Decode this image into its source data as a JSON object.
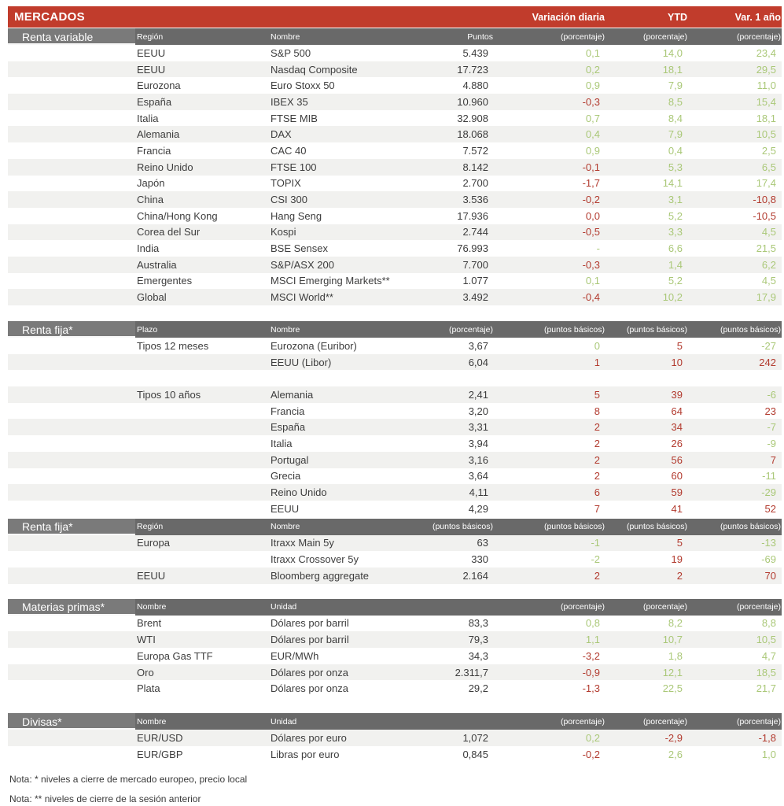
{
  "title_bar": {
    "title": "MERCADOS",
    "columns": [
      "Variación diaria",
      "YTD",
      "Var. 1 año"
    ]
  },
  "palette": {
    "bar_red": "#c13c2c",
    "negative": "#b23a2e",
    "positive": "#aac878",
    "header_gray": "#696969",
    "label_gray": "#7a7a7a",
    "row_alt": "#f1f1ef",
    "text": "#3d3d3d"
  },
  "sections": [
    {
      "id": "renta-variable",
      "label": "Renta variable",
      "col_ids": [
        "region",
        "nombre"
      ],
      "headers": [
        "Región",
        "Nombre",
        "Puntos",
        "(porcentaje)",
        "(porcentaje)",
        "(porcentaje)"
      ],
      "rows": [
        {
          "c1": "EEUU",
          "c2": "S&P 500",
          "val": "5.439",
          "v": [
            [
              "0,1",
              "g"
            ],
            [
              "14,0",
              "g"
            ],
            [
              "23,4",
              "g"
            ]
          ],
          "sh": 0
        },
        {
          "c1": "EEUU",
          "c2": "Nasdaq Composite",
          "val": "17.723",
          "v": [
            [
              "0,2",
              "g"
            ],
            [
              "18,1",
              "g"
            ],
            [
              "29,5",
              "g"
            ]
          ],
          "sh": 1
        },
        {
          "c1": "Eurozona",
          "c2": "Euro Stoxx 50",
          "val": "4.880",
          "v": [
            [
              "0,9",
              "g"
            ],
            [
              "7,9",
              "g"
            ],
            [
              "11,0",
              "g"
            ]
          ],
          "sh": 0
        },
        {
          "c1": "España",
          "c2": "IBEX 35",
          "val": "10.960",
          "v": [
            [
              "-0,3",
              "n"
            ],
            [
              "8,5",
              "g"
            ],
            [
              "15,4",
              "g"
            ]
          ],
          "sh": 1
        },
        {
          "c1": "Italia",
          "c2": "FTSE MIB",
          "val": "32.908",
          "v": [
            [
              "0,7",
              "g"
            ],
            [
              "8,4",
              "g"
            ],
            [
              "18,1",
              "g"
            ]
          ],
          "sh": 0
        },
        {
          "c1": "Alemania",
          "c2": "DAX",
          "val": "18.068",
          "v": [
            [
              "0,4",
              "g"
            ],
            [
              "7,9",
              "g"
            ],
            [
              "10,5",
              "g"
            ]
          ],
          "sh": 1
        },
        {
          "c1": "Francia",
          "c2": "CAC 40",
          "val": "7.572",
          "v": [
            [
              "0,9",
              "g"
            ],
            [
              "0,4",
              "g"
            ],
            [
              "2,5",
              "g"
            ]
          ],
          "sh": 0
        },
        {
          "c1": "Reino Unido",
          "c2": "FTSE 100",
          "val": "8.142",
          "v": [
            [
              "-0,1",
              "n"
            ],
            [
              "5,3",
              "g"
            ],
            [
              "6,5",
              "g"
            ]
          ],
          "sh": 1
        },
        {
          "c1": "Japón",
          "c2": "TOPIX",
          "val": "2.700",
          "v": [
            [
              "-1,7",
              "n"
            ],
            [
              "14,1",
              "g"
            ],
            [
              "17,4",
              "g"
            ]
          ],
          "sh": 0
        },
        {
          "c1": "China",
          "c2": "CSI 300",
          "val": "3.536",
          "v": [
            [
              "-0,2",
              "n"
            ],
            [
              "3,1",
              "g"
            ],
            [
              "-10,8",
              "n"
            ]
          ],
          "sh": 1
        },
        {
          "c1": "China/Hong Kong",
          "c2": "Hang Seng",
          "val": "17.936",
          "v": [
            [
              "0,0",
              "n"
            ],
            [
              "5,2",
              "g"
            ],
            [
              "-10,5",
              "n"
            ]
          ],
          "sh": 0
        },
        {
          "c1": "Corea del Sur",
          "c2": "Kospi",
          "val": "2.744",
          "v": [
            [
              "-0,5",
              "n"
            ],
            [
              "3,3",
              "g"
            ],
            [
              "4,5",
              "g"
            ]
          ],
          "sh": 1
        },
        {
          "c1": "India",
          "c2": "BSE Sensex",
          "val": "76.993",
          "v": [
            [
              "-",
              "g"
            ],
            [
              "6,6",
              "g"
            ],
            [
              "21,5",
              "g"
            ]
          ],
          "sh": 0
        },
        {
          "c1": "Australia",
          "c2": "S&P/ASX 200",
          "val": "7.700",
          "v": [
            [
              "-0,3",
              "n"
            ],
            [
              "1,4",
              "g"
            ],
            [
              "6,2",
              "g"
            ]
          ],
          "sh": 1
        },
        {
          "c1": "Emergentes",
          "c2": "MSCI Emerging Markets**",
          "val": "1.077",
          "v": [
            [
              "0,1",
              "g"
            ],
            [
              "5,2",
              "g"
            ],
            [
              "4,5",
              "g"
            ]
          ],
          "sh": 0
        },
        {
          "c1": "Global",
          "c2": "MSCI World**",
          "val": "3.492",
          "v": [
            [
              "-0,4",
              "n"
            ],
            [
              "10,2",
              "g"
            ],
            [
              "17,9",
              "g"
            ]
          ],
          "sh": 1
        }
      ]
    },
    {
      "id": "renta-fija-tipos",
      "label": "Renta fija*",
      "col_ids": [
        "plazo",
        "nombre"
      ],
      "headers": [
        "Plazo",
        "Nombre",
        "(porcentaje)",
        "(puntos básicos)",
        "(puntos básicos)",
        "(puntos básicos)"
      ],
      "rows": [
        {
          "c1": "Tipos 12 meses",
          "c2": "Eurozona (Euribor)",
          "val": "3,67",
          "v": [
            [
              "0",
              "g"
            ],
            [
              "5",
              "n"
            ],
            [
              "-27",
              "g"
            ]
          ],
          "sh": 0
        },
        {
          "c1": "",
          "c2": "EEUU (Libor)",
          "val": "6,04",
          "v": [
            [
              "1",
              "n"
            ],
            [
              "10",
              "n"
            ],
            [
              "242",
              "n"
            ]
          ],
          "sh": 1
        },
        {
          "blank": true
        },
        {
          "c1": "Tipos 10 años",
          "c2": "Alemania",
          "val": "2,41",
          "v": [
            [
              "5",
              "n"
            ],
            [
              "39",
              "n"
            ],
            [
              "-6",
              "g"
            ]
          ],
          "sh": 1
        },
        {
          "c1": "",
          "c2": "Francia",
          "val": "3,20",
          "v": [
            [
              "8",
              "n"
            ],
            [
              "64",
              "n"
            ],
            [
              "23",
              "n"
            ]
          ],
          "sh": 0
        },
        {
          "c1": "",
          "c2": "España",
          "val": "3,31",
          "v": [
            [
              "2",
              "n"
            ],
            [
              "34",
              "n"
            ],
            [
              "-7",
              "g"
            ]
          ],
          "sh": 1
        },
        {
          "c1": "",
          "c2": "Italia",
          "val": "3,94",
          "v": [
            [
              "2",
              "n"
            ],
            [
              "26",
              "n"
            ],
            [
              "-9",
              "g"
            ]
          ],
          "sh": 0
        },
        {
          "c1": "",
          "c2": "Portugal",
          "val": "3,16",
          "v": [
            [
              "2",
              "n"
            ],
            [
              "56",
              "n"
            ],
            [
              "7",
              "n"
            ]
          ],
          "sh": 1
        },
        {
          "c1": "",
          "c2": "Grecia",
          "val": "3,64",
          "v": [
            [
              "2",
              "n"
            ],
            [
              "60",
              "n"
            ],
            [
              "-11",
              "g"
            ]
          ],
          "sh": 0
        },
        {
          "c1": "",
          "c2": "Reino Unido",
          "val": "4,11",
          "v": [
            [
              "6",
              "n"
            ],
            [
              "59",
              "n"
            ],
            [
              "-29",
              "g"
            ]
          ],
          "sh": 1
        },
        {
          "c1": "",
          "c2": "EEUU",
          "val": "4,29",
          "v": [
            [
              "7",
              "n"
            ],
            [
              "41",
              "n"
            ],
            [
              "52",
              "n"
            ]
          ],
          "sh": 0
        }
      ]
    },
    {
      "id": "renta-fija-credito",
      "label": "Renta fija*",
      "col_ids": [
        "region",
        "nombre"
      ],
      "headers": [
        "Región",
        "Nombre",
        "(puntos básicos)",
        "(puntos básicos)",
        "(puntos básicos)",
        "(puntos básicos)"
      ],
      "rows": [
        {
          "c1": "Europa",
          "c2": "Itraxx Main 5y",
          "val": "63",
          "v": [
            [
              "-1",
              "g"
            ],
            [
              "5",
              "n"
            ],
            [
              "-13",
              "g"
            ]
          ],
          "sh": 1
        },
        {
          "c1": "",
          "c2": "Itraxx Crossover 5y",
          "val": "330",
          "v": [
            [
              "-2",
              "g"
            ],
            [
              "19",
              "n"
            ],
            [
              "-69",
              "g"
            ]
          ],
          "sh": 0
        },
        {
          "c1": "EEUU",
          "c2": "Bloomberg aggregate",
          "val": "2.164",
          "v": [
            [
              "2",
              "n"
            ],
            [
              "2",
              "n"
            ],
            [
              "70",
              "n"
            ]
          ],
          "sh": 1
        }
      ]
    },
    {
      "id": "materias-primas",
      "label": "Materias primas*",
      "col_ids": [
        "nombre",
        "unidad"
      ],
      "headers": [
        "Nombre",
        "Unidad",
        "",
        "(porcentaje)",
        "(porcentaje)",
        "(porcentaje)"
      ],
      "rows": [
        {
          "c1": "Brent",
          "c2": "Dólares por barril",
          "val": "83,3",
          "v": [
            [
              "0,8",
              "g"
            ],
            [
              "8,2",
              "g"
            ],
            [
              "8,8",
              "g"
            ]
          ],
          "sh": 0
        },
        {
          "c1": "WTI",
          "c2": "Dólares por barril",
          "val": "79,3",
          "v": [
            [
              "1,1",
              "g"
            ],
            [
              "10,7",
              "g"
            ],
            [
              "10,5",
              "g"
            ]
          ],
          "sh": 1
        },
        {
          "c1": "Europa Gas TTF",
          "c2": "EUR/MWh",
          "val": "34,3",
          "v": [
            [
              "-3,2",
              "n"
            ],
            [
              "1,8",
              "g"
            ],
            [
              "4,7",
              "g"
            ]
          ],
          "sh": 0
        },
        {
          "c1": "Oro",
          "c2": "Dólares por onza",
          "val": "2.311,7",
          "v": [
            [
              "-0,9",
              "n"
            ],
            [
              "12,1",
              "g"
            ],
            [
              "18,5",
              "g"
            ]
          ],
          "sh": 1
        },
        {
          "c1": "Plata",
          "c2": "Dólares por onza",
          "val": "29,2",
          "v": [
            [
              "-1,3",
              "n"
            ],
            [
              "22,5",
              "g"
            ],
            [
              "21,7",
              "g"
            ]
          ],
          "sh": 0
        }
      ]
    },
    {
      "id": "divisas",
      "label": "Divisas*",
      "col_ids": [
        "nombre",
        "unidad"
      ],
      "headers": [
        "Nombre",
        "Unidad",
        "",
        "(porcentaje)",
        "(porcentaje)",
        "(porcentaje)"
      ],
      "rows": [
        {
          "c1": "EUR/USD",
          "c2": "Dólares por euro",
          "val": "1,072",
          "v": [
            [
              "0,2",
              "g"
            ],
            [
              "-2,9",
              "n"
            ],
            [
              "-1,8",
              "n"
            ]
          ],
          "sh": 1
        },
        {
          "c1": "EUR/GBP",
          "c2": "Libras por euro",
          "val": "0,845",
          "v": [
            [
              "-0,2",
              "n"
            ],
            [
              "2,6",
              "g"
            ],
            [
              "1,0",
              "g"
            ]
          ],
          "sh": 0
        }
      ]
    }
  ],
  "notes": [
    "Nota: * niveles a cierre de mercado europeo, precio local",
    "Nota: ** niveles de cierre de la sesión anterior"
  ]
}
